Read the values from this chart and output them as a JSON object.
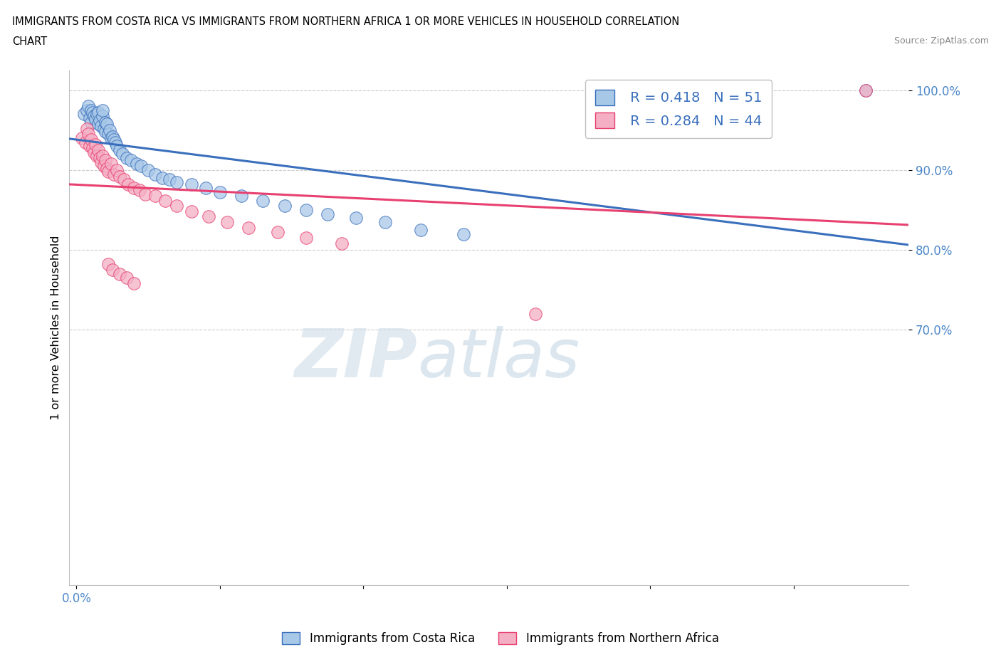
{
  "title_line1": "IMMIGRANTS FROM COSTA RICA VS IMMIGRANTS FROM NORTHERN AFRICA 1 OR MORE VEHICLES IN HOUSEHOLD CORRELATION",
  "title_line2": "CHART",
  "source": "Source: ZipAtlas.com",
  "ylabel": "1 or more Vehicles in Household",
  "xlim": [
    -0.005,
    0.58
  ],
  "ylim": [
    0.38,
    1.025
  ],
  "x_ticks": [
    0.0,
    0.1,
    0.2,
    0.3,
    0.4,
    0.5
  ],
  "x_tick_labels": [
    "0.0%",
    "",
    "",
    "",
    "",
    ""
  ],
  "y_ticks": [
    0.7,
    0.8,
    0.9,
    1.0
  ],
  "y_tick_labels": [
    "70.0%",
    "80.0%",
    "90.0%",
    "100.0%"
  ],
  "blue_color": "#a8c8e8",
  "pink_color": "#f4afc4",
  "blue_line_color": "#3a6fbc",
  "pink_line_color": "#e84070",
  "R_blue": 0.418,
  "N_blue": 51,
  "R_pink": 0.284,
  "N_pink": 44,
  "legend_label_blue": "Immigrants from Costa Rica",
  "legend_label_pink": "Immigrants from Northern Africa",
  "watermark_zip": "ZIP",
  "watermark_atlas": "atlas",
  "blue_scatter_x": [
    0.005,
    0.007,
    0.008,
    0.009,
    0.01,
    0.01,
    0.011,
    0.012,
    0.013,
    0.014,
    0.015,
    0.015,
    0.016,
    0.017,
    0.018,
    0.018,
    0.019,
    0.02,
    0.02,
    0.021,
    0.022,
    0.023,
    0.024,
    0.025,
    0.026,
    0.027,
    0.028,
    0.03,
    0.032,
    0.035,
    0.038,
    0.042,
    0.045,
    0.05,
    0.055,
    0.06,
    0.065,
    0.07,
    0.08,
    0.09,
    0.1,
    0.115,
    0.13,
    0.145,
    0.16,
    0.175,
    0.195,
    0.215,
    0.24,
    0.27,
    0.55
  ],
  "blue_scatter_y": [
    0.97,
    0.975,
    0.98,
    0.965,
    0.975,
    0.96,
    0.972,
    0.968,
    0.964,
    0.97,
    0.958,
    0.972,
    0.962,
    0.955,
    0.968,
    0.975,
    0.952,
    0.948,
    0.96,
    0.958,
    0.945,
    0.95,
    0.94,
    0.942,
    0.938,
    0.935,
    0.93,
    0.925,
    0.92,
    0.915,
    0.912,
    0.908,
    0.905,
    0.9,
    0.895,
    0.89,
    0.888,
    0.885,
    0.882,
    0.878,
    0.872,
    0.868,
    0.862,
    0.855,
    0.85,
    0.845,
    0.84,
    0.835,
    0.825,
    0.82,
    1.0
  ],
  "pink_scatter_x": [
    0.004,
    0.006,
    0.007,
    0.008,
    0.009,
    0.01,
    0.011,
    0.012,
    0.013,
    0.014,
    0.015,
    0.016,
    0.017,
    0.018,
    0.019,
    0.02,
    0.021,
    0.022,
    0.024,
    0.026,
    0.028,
    0.03,
    0.033,
    0.036,
    0.04,
    0.044,
    0.048,
    0.055,
    0.062,
    0.07,
    0.08,
    0.092,
    0.105,
    0.12,
    0.14,
    0.16,
    0.185,
    0.022,
    0.025,
    0.03,
    0.035,
    0.04,
    0.32,
    0.55
  ],
  "pink_scatter_y": [
    0.94,
    0.935,
    0.952,
    0.945,
    0.93,
    0.938,
    0.928,
    0.922,
    0.932,
    0.918,
    0.925,
    0.915,
    0.91,
    0.918,
    0.905,
    0.912,
    0.902,
    0.898,
    0.908,
    0.895,
    0.9,
    0.892,
    0.888,
    0.882,
    0.878,
    0.875,
    0.87,
    0.868,
    0.862,
    0.855,
    0.848,
    0.842,
    0.835,
    0.828,
    0.822,
    0.815,
    0.808,
    0.782,
    0.775,
    0.77,
    0.765,
    0.758,
    0.72,
    1.0
  ]
}
